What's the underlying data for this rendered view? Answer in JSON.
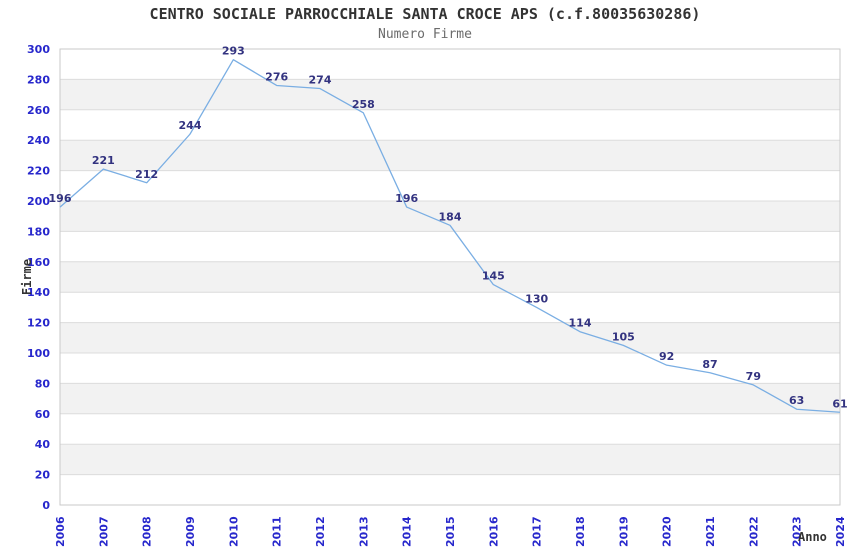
{
  "chart_data": {
    "type": "line",
    "title": "CENTRO SOCIALE PARROCCHIALE SANTA CROCE APS (c.f.80035630286)",
    "subtitle": "Numero Firme",
    "xlabel": "Anno",
    "ylabel": "Firme",
    "categories": [
      "2006",
      "2007",
      "2008",
      "2009",
      "2010",
      "2011",
      "2012",
      "2013",
      "2014",
      "2015",
      "2016",
      "2017",
      "2018",
      "2019",
      "2020",
      "2021",
      "2022",
      "2023",
      "2024"
    ],
    "values": [
      196,
      221,
      212,
      244,
      293,
      276,
      274,
      258,
      196,
      184,
      145,
      130,
      114,
      105,
      92,
      87,
      79,
      63,
      61
    ],
    "ylim": [
      0,
      300
    ],
    "ytick_step": 20,
    "yticks": [
      0,
      20,
      40,
      60,
      80,
      100,
      120,
      140,
      160,
      180,
      200,
      220,
      240,
      260,
      280,
      300
    ],
    "grid": true,
    "legend_position": "none",
    "band_fill": "alternating",
    "colors": {
      "line": "#7aaee3",
      "band": "#f2f2f2",
      "grid": "#dcdcdc",
      "border": "#c9c9c9",
      "tick_label": "#2727cc",
      "data_label": "#333380",
      "title": "#333333",
      "subtitle": "#6b6b6b",
      "axis_title": "#333333",
      "background": "#ffffff"
    }
  }
}
